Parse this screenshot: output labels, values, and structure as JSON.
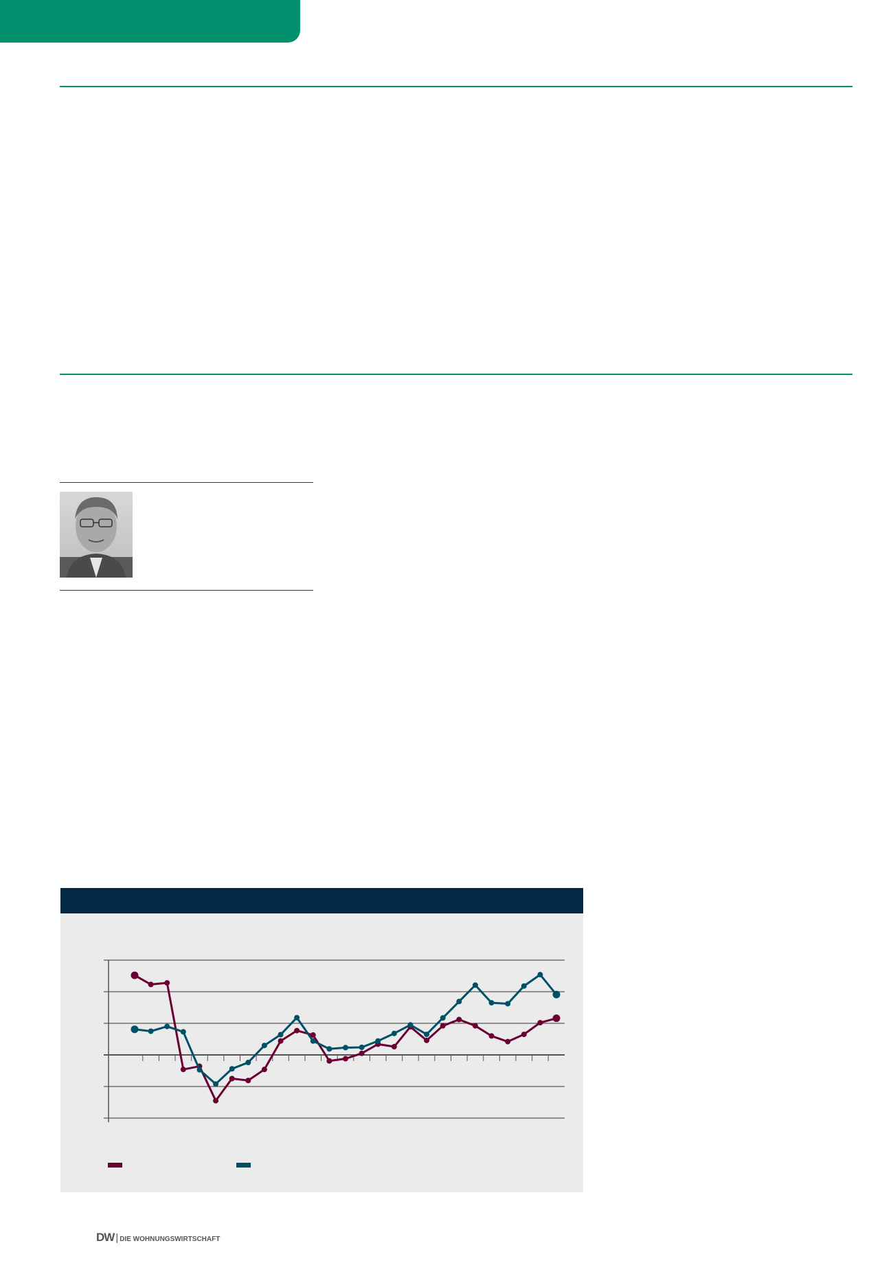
{
  "footer": {
    "logo": "DW",
    "separator": "|",
    "publication": "DIE WOHNUNGSWIRTSCHAFT"
  },
  "colors": {
    "accent": "#03906f",
    "chart_header": "#022a44",
    "series_1": "#6b0033",
    "series_2": "#005068"
  },
  "chart_data": {
    "type": "line",
    "title": "",
    "xlabel": "",
    "ylabel": "",
    "ylim": [
      -2,
      3
    ],
    "grid": true,
    "legend": "bottom-left",
    "series": [
      {
        "color": "#6b0033",
        "values": [
          2.52,
          2.23,
          2.28,
          -0.46,
          -0.36,
          -1.45,
          -0.75,
          -0.81,
          -0.46,
          0.44,
          0.77,
          0.63,
          -0.19,
          -0.12,
          0.05,
          0.34,
          0.26,
          0.89,
          0.46,
          0.92,
          1.12,
          0.92,
          0.6,
          0.42,
          0.65,
          1.02,
          1.16
        ]
      },
      {
        "color": "#005068",
        "values": [
          0.81,
          0.75,
          0.9,
          0.73,
          -0.47,
          -0.92,
          -0.44,
          -0.24,
          0.3,
          0.64,
          1.18,
          0.44,
          0.19,
          0.23,
          0.24,
          0.44,
          0.68,
          0.95,
          0.65,
          1.17,
          1.69,
          2.21,
          1.65,
          1.62,
          2.18,
          2.54,
          1.91
        ]
      }
    ]
  }
}
